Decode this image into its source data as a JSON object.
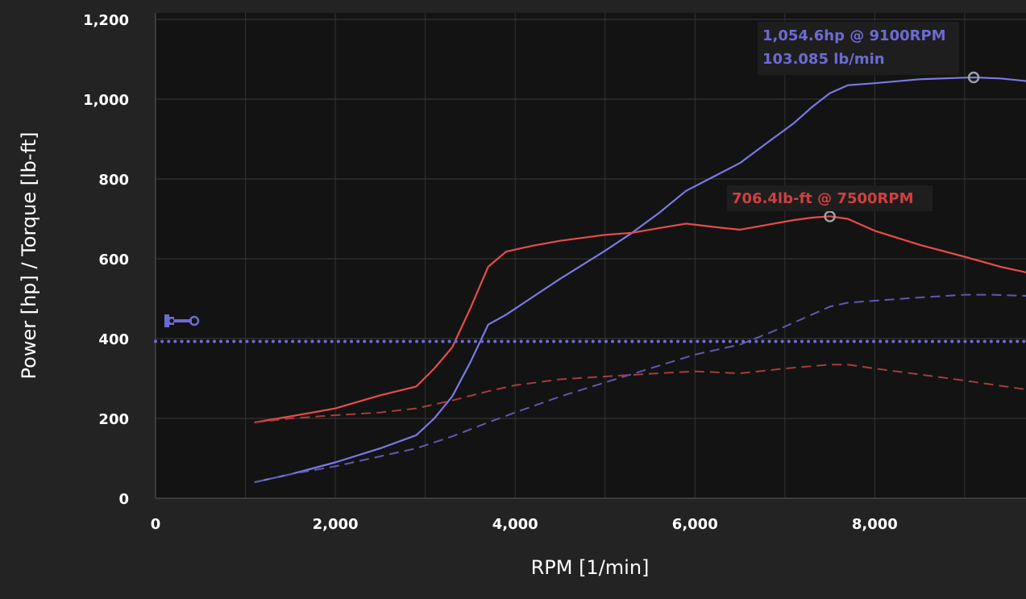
{
  "chart_data": {
    "type": "line",
    "xlabel": "RPM [1/min]",
    "ylabel": "Power [hp] / Torque [lb-ft]",
    "xlim": [
      0,
      9700
    ],
    "ylim": [
      0,
      1200
    ],
    "xticks": [
      {
        "v": 0,
        "label": "0"
      },
      {
        "v": 2000,
        "label": "2,000"
      },
      {
        "v": 4000,
        "label": "4,000"
      },
      {
        "v": 6000,
        "label": "6,000"
      },
      {
        "v": 8000,
        "label": "8,000"
      }
    ],
    "yticks": [
      {
        "v": 0,
        "label": "0"
      },
      {
        "v": 200,
        "label": "200"
      },
      {
        "v": 400,
        "label": "400"
      },
      {
        "v": 600,
        "label": "600"
      },
      {
        "v": 800,
        "label": "800"
      },
      {
        "v": 1000,
        "label": "1,000"
      },
      {
        "v": 1200,
        "label": "1,200"
      }
    ],
    "grid": true,
    "series": [
      {
        "style": "solid",
        "color": "#7b78e6",
        "x": [
          1100,
          1500,
          2000,
          2500,
          2900,
          3100,
          3300,
          3500,
          3700,
          3900,
          4200,
          4500,
          5000,
          5300,
          5600,
          5900,
          6200,
          6500,
          6800,
          7100,
          7300,
          7500,
          7700,
          8000,
          8500,
          9000,
          9100,
          9400,
          9700
        ],
        "y": [
          40,
          60,
          90,
          125,
          158,
          200,
          255,
          340,
          435,
          460,
          505,
          550,
          620,
          665,
          715,
          770,
          805,
          840,
          890,
          940,
          980,
          1015,
          1035,
          1040,
          1050,
          1054,
          1054.6,
          1052,
          1045
        ]
      },
      {
        "style": "solid",
        "color": "#e84b4b",
        "x": [
          1100,
          1500,
          2000,
          2500,
          2900,
          3100,
          3300,
          3500,
          3700,
          3900,
          4200,
          4500,
          5000,
          5300,
          5600,
          5900,
          6200,
          6500,
          6800,
          7100,
          7300,
          7500,
          7700,
          8000,
          8500,
          9000,
          9400,
          9700
        ],
        "y": [
          190,
          205,
          225,
          258,
          280,
          325,
          378,
          475,
          580,
          618,
          633,
          645,
          660,
          665,
          677,
          688,
          680,
          673,
          685,
          697,
          703,
          706.4,
          700,
          670,
          635,
          605,
          580,
          565
        ]
      },
      {
        "style": "dashed",
        "color": "#5c59b3",
        "x": [
          1100,
          1500,
          2000,
          2500,
          2900,
          3300,
          3700,
          4000,
          4500,
          5000,
          5500,
          6000,
          6500,
          7000,
          7500,
          7700,
          8000,
          8500,
          9000,
          9300,
          9700
        ],
        "y": [
          40,
          60,
          80,
          105,
          125,
          155,
          190,
          215,
          255,
          290,
          325,
          360,
          385,
          430,
          480,
          490,
          495,
          503,
          510,
          510,
          507
        ]
      },
      {
        "style": "dashed",
        "color": "#a83c3c",
        "x": [
          1100,
          1500,
          2000,
          2500,
          2900,
          3300,
          3700,
          4000,
          4500,
          5000,
          5500,
          6000,
          6500,
          7000,
          7500,
          7700,
          8000,
          8500,
          9000,
          9700
        ],
        "y": [
          190,
          200,
          208,
          215,
          225,
          245,
          268,
          283,
          298,
          305,
          312,
          318,
          313,
          325,
          335,
          335,
          325,
          310,
          295,
          272
        ]
      },
      {
        "style": "dotted",
        "color": "#6d6ad3",
        "x": [
          0,
          9700
        ],
        "y": [
          393,
          393
        ]
      }
    ],
    "peak_markers": [
      {
        "x": 9100,
        "y": 1054.6,
        "color": "#7b78e6"
      },
      {
        "x": 7500,
        "y": 706.4,
        "color": "#e84b4b"
      }
    ],
    "annotations": {
      "power_line1": "1,054.6hp @ 9100RPM",
      "power_line2": "103.085 lb/min",
      "torque_line1": "706.4lb-ft @ 7500RPM"
    },
    "reference_icon": "piston-icon"
  }
}
